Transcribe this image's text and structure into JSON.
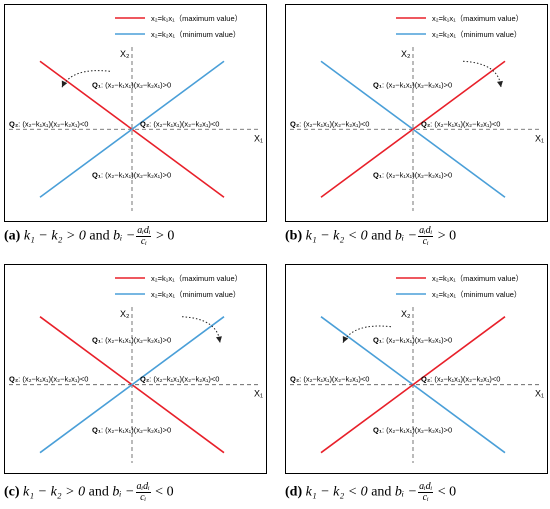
{
  "legend": {
    "red_label": "x₂=k₁x₁（maximum value）",
    "blue_label": "x₂=k₂x₁（minimum value）",
    "red_color": "#e8202a",
    "blue_color": "#4a9fd8"
  },
  "axes": {
    "x": "X₁",
    "y": "X₂"
  },
  "regions": {
    "q1": "Q₁",
    "q2": "Q₂",
    "q1_expr": ": (x₂−k₁x₁)(x₂−k₂x₁)>0",
    "q2_expr": ": (x₂−k₁x₁)(x₂−k₂x₁)<0"
  },
  "panels": [
    {
      "tag": "(a)",
      "cond1": "k₁ − k₂ > 0",
      "and": "and",
      "cond2_pre": "bᵢ −",
      "num": "aᵢdᵢ",
      "den": "cᵢ",
      "cond2_post": "> 0"
    },
    {
      "tag": "(b)",
      "cond1": "k₁ − k₂ < 0",
      "and": "and",
      "cond2_pre": "bᵢ −",
      "num": "aᵢdᵢ",
      "den": "cᵢ",
      "cond2_post": "> 0"
    },
    {
      "tag": "(c)",
      "cond1": "k₁ − k₂ > 0",
      "and": "and",
      "cond2_pre": "bᵢ −",
      "num": "aᵢdᵢ",
      "den": "cᵢ",
      "cond2_post": "< 0"
    },
    {
      "tag": "(d)",
      "cond1": "k₁ − k₂ < 0",
      "and": "and",
      "cond2_pre": "bᵢ −",
      "num": "aᵢdᵢ",
      "den": "cᵢ",
      "cond2_post": "< 0"
    }
  ]
}
